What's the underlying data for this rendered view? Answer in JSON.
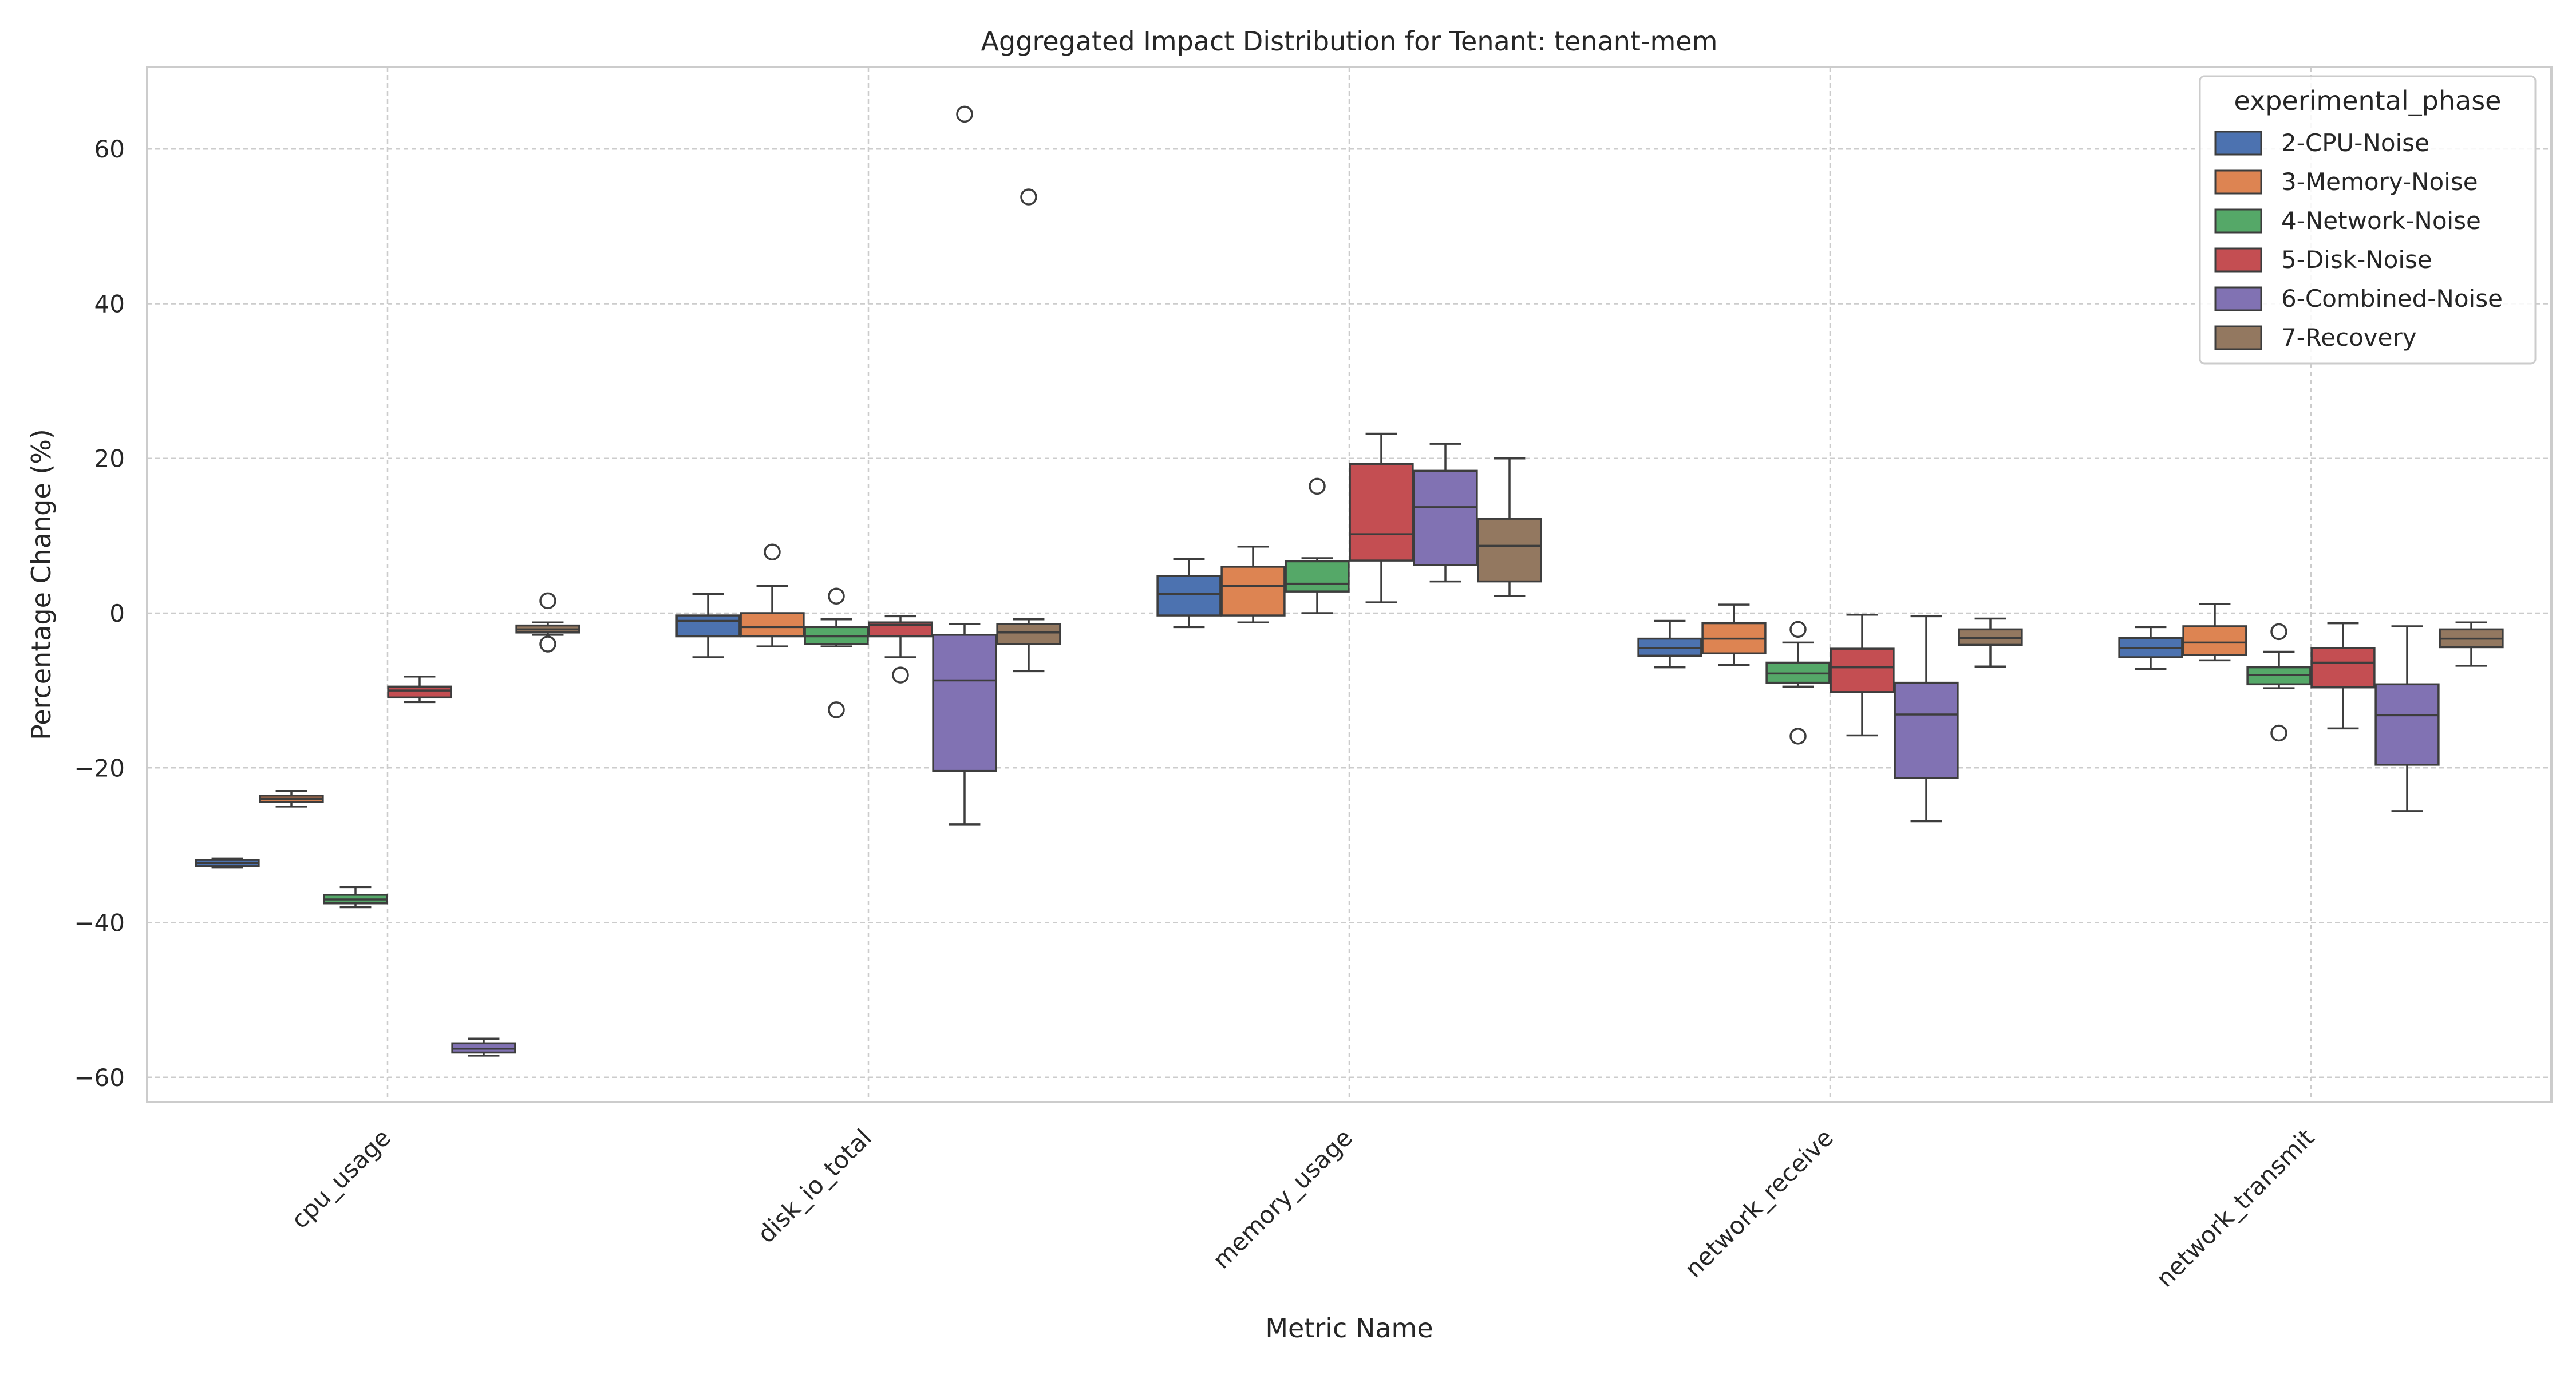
{
  "chart_data": {
    "type": "box",
    "title": "Aggregated Impact Distribution for Tenant: tenant-mem",
    "xlabel": "Metric Name",
    "ylabel": "Percentage Change (%)",
    "ylim": [
      -63.2,
      70.6
    ],
    "yticks": [
      -60,
      -40,
      -20,
      0,
      20,
      40,
      60
    ],
    "grid": true,
    "legend": {
      "title": "experimental_phase",
      "placement": "top-right"
    },
    "categories": [
      "cpu_usage",
      "disk_io_total",
      "memory_usage",
      "network_receive",
      "network_transmit"
    ],
    "series": [
      {
        "name": "2-CPU-Noise",
        "color": "#4c72b0",
        "boxes": [
          {
            "whislo": -32.9,
            "q1": -32.7,
            "med": -32.3,
            "q3": -31.9,
            "whishi": -31.7,
            "fliers": []
          },
          {
            "whislo": -5.7,
            "q1": -3.0,
            "med": -1.0,
            "q3": -0.3,
            "whishi": 2.5,
            "fliers": []
          },
          {
            "whislo": -1.8,
            "q1": -0.3,
            "med": 2.5,
            "q3": 4.8,
            "whishi": 7.0,
            "fliers": []
          },
          {
            "whislo": -7.0,
            "q1": -5.5,
            "med": -4.5,
            "q3": -3.3,
            "whishi": -1.0,
            "fliers": []
          },
          {
            "whislo": -7.2,
            "q1": -5.7,
            "med": -4.5,
            "q3": -3.2,
            "whishi": -1.8,
            "fliers": []
          }
        ]
      },
      {
        "name": "3-Memory-Noise",
        "color": "#dd8452",
        "boxes": [
          {
            "whislo": -25.0,
            "q1": -24.4,
            "med": -24.0,
            "q3": -23.6,
            "whishi": -23.0,
            "fliers": []
          },
          {
            "whislo": -4.3,
            "q1": -3.0,
            "med": -1.8,
            "q3": 0.0,
            "whishi": 3.5,
            "fliers": [
              7.9
            ]
          },
          {
            "whislo": -1.2,
            "q1": -0.3,
            "med": 3.5,
            "q3": 6.0,
            "whishi": 8.6,
            "fliers": []
          },
          {
            "whislo": -6.7,
            "q1": -5.2,
            "med": -3.3,
            "q3": -1.3,
            "whishi": 1.1,
            "fliers": []
          },
          {
            "whislo": -6.1,
            "q1": -5.4,
            "med": -3.8,
            "q3": -1.7,
            "whishi": 1.2,
            "fliers": []
          }
        ]
      },
      {
        "name": "4-Network-Noise",
        "color": "#55a868",
        "boxes": [
          {
            "whislo": -38.0,
            "q1": -37.5,
            "med": -37.0,
            "q3": -36.4,
            "whishi": -35.4,
            "fliers": []
          },
          {
            "whislo": -4.3,
            "q1": -4.0,
            "med": -3.0,
            "q3": -1.8,
            "whishi": -0.8,
            "fliers": [
              2.2,
              -12.5
            ]
          },
          {
            "whislo": 0.0,
            "q1": 2.8,
            "med": 3.8,
            "q3": 6.7,
            "whishi": 7.1,
            "fliers": [
              16.4
            ]
          },
          {
            "whislo": -9.5,
            "q1": -9.0,
            "med": -7.8,
            "q3": -6.4,
            "whishi": -3.8,
            "fliers": [
              -2.1,
              -15.9
            ]
          },
          {
            "whislo": -9.7,
            "q1": -9.2,
            "med": -8.0,
            "q3": -7.0,
            "whishi": -5.0,
            "fliers": [
              -2.4,
              -15.5
            ]
          }
        ]
      },
      {
        "name": "5-Disk-Noise",
        "color": "#c44e52",
        "boxes": [
          {
            "whislo": -11.5,
            "q1": -10.9,
            "med": -10.0,
            "q3": -9.5,
            "whishi": -8.2,
            "fliers": []
          },
          {
            "whislo": -5.7,
            "q1": -3.0,
            "med": -1.5,
            "q3": -1.2,
            "whishi": -0.4,
            "fliers": [
              -8.0
            ]
          },
          {
            "whislo": 1.4,
            "q1": 6.8,
            "med": 10.2,
            "q3": 19.3,
            "whishi": 23.2,
            "fliers": []
          },
          {
            "whislo": -15.8,
            "q1": -10.2,
            "med": -7.0,
            "q3": -4.6,
            "whishi": -0.2,
            "fliers": []
          },
          {
            "whislo": -14.9,
            "q1": -9.6,
            "med": -6.4,
            "q3": -4.5,
            "whishi": -1.3,
            "fliers": []
          }
        ]
      },
      {
        "name": "6-Combined-Noise",
        "color": "#8172b3",
        "boxes": [
          {
            "whislo": -57.2,
            "q1": -56.8,
            "med": -56.3,
            "q3": -55.6,
            "whishi": -55.0,
            "fliers": []
          },
          {
            "whislo": -27.3,
            "q1": -20.4,
            "med": -8.7,
            "q3": -2.8,
            "whishi": -1.4,
            "fliers": [
              64.5
            ]
          },
          {
            "whislo": 4.1,
            "q1": 6.2,
            "med": 13.7,
            "q3": 18.4,
            "whishi": 21.9,
            "fliers": []
          },
          {
            "whislo": -26.9,
            "q1": -21.3,
            "med": -13.1,
            "q3": -9.0,
            "whishi": -0.4,
            "fliers": []
          },
          {
            "whislo": -25.6,
            "q1": -19.6,
            "med": -13.2,
            "q3": -9.2,
            "whishi": -1.7,
            "fliers": []
          }
        ]
      },
      {
        "name": "7-Recovery",
        "color": "#937860",
        "boxes": [
          {
            "whislo": -2.8,
            "q1": -2.5,
            "med": -2.1,
            "q3": -1.6,
            "whishi": -1.2,
            "fliers": [
              1.6,
              -4.0
            ]
          },
          {
            "whislo": -7.5,
            "q1": -4.0,
            "med": -2.5,
            "q3": -1.4,
            "whishi": -0.8,
            "fliers": [
              53.8
            ]
          },
          {
            "whislo": 2.2,
            "q1": 4.1,
            "med": 8.7,
            "q3": 12.2,
            "whishi": 20.0,
            "fliers": []
          },
          {
            "whislo": -6.9,
            "q1": -4.1,
            "med": -3.2,
            "q3": -2.1,
            "whishi": -0.7,
            "fliers": []
          },
          {
            "whislo": -6.8,
            "q1": -4.4,
            "med": -3.3,
            "q3": -2.1,
            "whishi": -1.2,
            "fliers": []
          }
        ]
      }
    ]
  }
}
